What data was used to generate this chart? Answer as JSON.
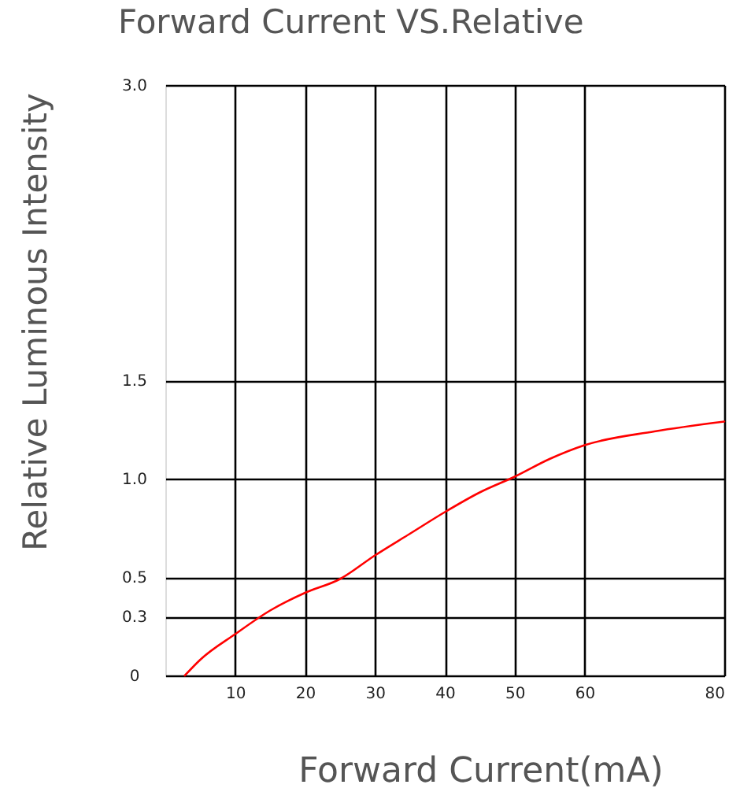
{
  "chart_data": {
    "type": "line",
    "title": "Forward Current VS.Relative",
    "xlabel": "Forward Current(mA)",
    "ylabel": "Relative Luminous Intensity",
    "x": [
      2.8,
      5,
      10,
      15,
      20,
      25,
      30,
      35,
      40,
      45,
      50,
      55,
      60,
      70,
      80
    ],
    "series": [
      {
        "color": "#ff0000",
        "values": [
          0,
          0.08,
          0.21,
          0.33,
          0.42,
          0.49,
          0.61,
          0.72,
          0.83,
          0.93,
          1.01,
          1.1,
          1.17,
          1.24,
          1.29
        ]
      }
    ],
    "xlim": [
      0,
      80
    ],
    "xticks": [
      10,
      20,
      30,
      40,
      50,
      60,
      80
    ],
    "ylim": [
      0,
      3
    ],
    "yticks": [
      0,
      0.3,
      0.5,
      {
        "value": 1,
        "label": "1.0"
      },
      1.5,
      {
        "value": 3,
        "label": "3.0"
      }
    ],
    "grid": true,
    "line_style": "solid"
  }
}
